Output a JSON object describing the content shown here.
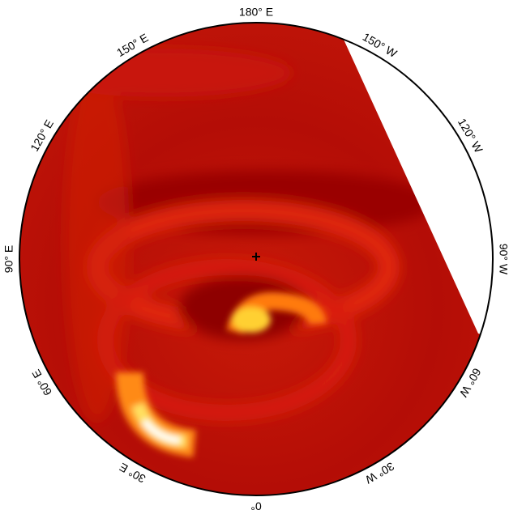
{
  "map": {
    "longitude_labels": [
      "180° E",
      "150° W",
      "120° W",
      "90° W",
      "60° W",
      "30° W",
      "0°",
      "30° E",
      "60° E",
      "90° E",
      "120° E",
      "150° E"
    ]
  }
}
